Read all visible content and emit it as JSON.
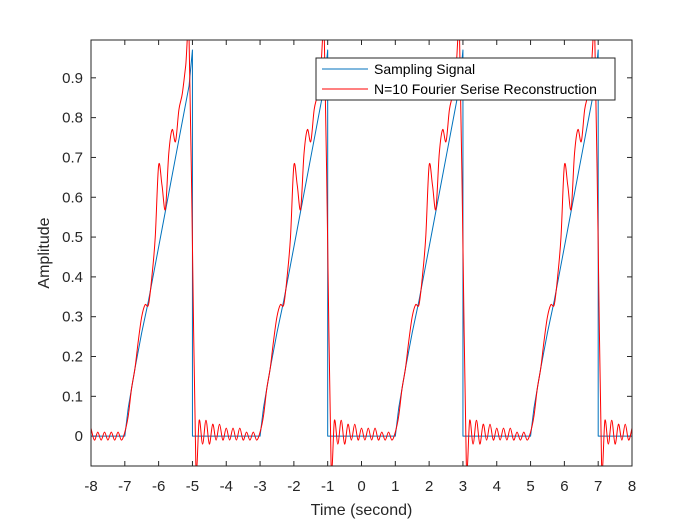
{
  "chart_data": {
    "type": "line",
    "title": "",
    "xlabel": "Time (second)",
    "ylabel": "Amplitude",
    "xlim": [
      -8,
      8
    ],
    "ylim": [
      -0.075,
      0.995
    ],
    "x_ticks": [
      -8,
      -7,
      -6,
      -5,
      -4,
      -3,
      -2,
      -1,
      0,
      1,
      2,
      3,
      4,
      5,
      6,
      7,
      8
    ],
    "y_ticks": [
      0,
      0.1,
      0.2,
      0.3,
      0.4,
      0.5,
      0.6,
      0.7,
      0.8,
      0.9
    ],
    "x_tick_labels": [
      "-8",
      "-7",
      "-6",
      "-5",
      "-4",
      "-3",
      "-2",
      "-1",
      "0",
      "1",
      "2",
      "3",
      "4",
      "5",
      "6",
      "7",
      "8"
    ],
    "y_tick_labels": [
      "0",
      "0.1",
      "0.2",
      "0.3",
      "0.4",
      "0.5",
      "0.6",
      "0.7",
      "0.8",
      "0.9"
    ],
    "grid": false,
    "legend_position": "top-right",
    "series": [
      {
        "name": "Sampling Signal",
        "color": "#0072bd",
        "x": [
          -8,
          -7,
          -6.9,
          -6.7,
          -6.5,
          -6.3,
          -6.1,
          -5.9,
          -5.7,
          -5.5,
          -5.3,
          -5.1,
          -5,
          -5,
          -3,
          -2.9,
          -2.7,
          -2.5,
          -2.3,
          -2.1,
          -1.9,
          -1.7,
          -1.5,
          -1.3,
          -1.1,
          -1,
          -1,
          1,
          1.1,
          1.3,
          1.5,
          1.7,
          1.9,
          2.1,
          2.3,
          2.5,
          2.7,
          2.9,
          3,
          3,
          5,
          5.1,
          5.3,
          5.5,
          5.7,
          5.9,
          6.1,
          6.3,
          6.5,
          6.7,
          6.9,
          7,
          7,
          8
        ],
        "y": [
          0,
          0,
          0.07,
          0.17,
          0.26,
          0.34,
          0.43,
          0.52,
          0.61,
          0.7,
          0.79,
          0.88,
          0.97,
          0,
          0,
          0.07,
          0.17,
          0.26,
          0.34,
          0.43,
          0.52,
          0.61,
          0.7,
          0.79,
          0.88,
          0.97,
          0,
          0,
          0.07,
          0.17,
          0.26,
          0.34,
          0.43,
          0.52,
          0.61,
          0.7,
          0.79,
          0.88,
          0.97,
          0,
          0,
          0.07,
          0.17,
          0.26,
          0.34,
          0.43,
          0.52,
          0.61,
          0.7,
          0.79,
          0.88,
          0.97,
          0,
          0
        ]
      },
      {
        "name": "N=10 Fourier Serise Reconstruction",
        "color": "#ff0000",
        "x": [
          -8,
          -7.9,
          -7.8,
          -7.7,
          -7.6,
          -7.5,
          -7.4,
          -7.3,
          -7.2,
          -7.1,
          -7,
          -6.9,
          -6.8,
          -6.7,
          -6.6,
          -6.5,
          -6.4,
          -6.3,
          -6.2,
          -6.1,
          -6,
          -5.9,
          -5.8,
          -5.7,
          -5.6,
          -5.5,
          -5.4,
          -5.3,
          -5.2,
          -5.1,
          -5,
          -4.9,
          -4.8,
          -4.7,
          -4.6,
          -4.5,
          -4.4,
          -4.3,
          -4.2,
          -4.1,
          -4,
          -3.9,
          -3.8,
          -3.7,
          -3.6,
          -3.5,
          -3.4,
          -3.3,
          -3.2,
          -3.1,
          -3,
          -2.9,
          -2.8,
          -2.7,
          -2.6,
          -2.5,
          -2.4,
          -2.3,
          -2.2,
          -2.1,
          -2,
          -1.9,
          -1.8,
          -1.7,
          -1.6,
          -1.5,
          -1.4,
          -1.3,
          -1.2,
          -1.1,
          -1,
          -0.9,
          -0.8,
          -0.7,
          -0.6,
          -0.5,
          -0.4,
          -0.3,
          -0.2,
          -0.1,
          0,
          0.1,
          0.2,
          0.3,
          0.4,
          0.5,
          0.6,
          0.7,
          0.8,
          0.9,
          1,
          1.1,
          1.2,
          1.3,
          1.4,
          1.5,
          1.6,
          1.7,
          1.8,
          1.9,
          2,
          2.1,
          2.2,
          2.3,
          2.4,
          2.5,
          2.6,
          2.7,
          2.8,
          2.9,
          3,
          3.1,
          3.2,
          3.3,
          3.4,
          3.5,
          3.6,
          3.7,
          3.8,
          3.9,
          4,
          4.1,
          4.2,
          4.3,
          4.4,
          4.5,
          4.6,
          4.7,
          4.8,
          4.9,
          5,
          5.1,
          5.2,
          5.3,
          5.4,
          5.5,
          5.6,
          5.7,
          5.8,
          5.9,
          6,
          6.1,
          6.2,
          6.3,
          6.4,
          6.5,
          6.6,
          6.7,
          6.8,
          6.9,
          7,
          7.1,
          7.2,
          7.3,
          7.4,
          7.5,
          7.6,
          7.7,
          7.8,
          7.9,
          8
        ],
        "y": [
          0.02,
          -0.01,
          0.01,
          -0.01,
          0.01,
          -0.01,
          0.01,
          -0.01,
          0.01,
          -0.01,
          0.01,
          0.05,
          0.12,
          0.17,
          0.24,
          0.3,
          0.33,
          0.33,
          0.4,
          0.5,
          0.68,
          0.63,
          0.57,
          0.71,
          0.77,
          0.74,
          0.82,
          0.86,
          0.93,
          1.0,
          0.48,
          -0.07,
          0.04,
          -0.02,
          0.04,
          -0.02,
          0.03,
          -0.01,
          0.03,
          -0.01,
          0.02,
          -0.01,
          0.02,
          -0.01,
          0.02,
          -0.01,
          0.01,
          -0.01,
          0.01,
          -0.01,
          0.01,
          0.05,
          0.12,
          0.17,
          0.24,
          0.3,
          0.33,
          0.33,
          0.4,
          0.5,
          0.68,
          0.63,
          0.57,
          0.71,
          0.77,
          0.74,
          0.82,
          0.86,
          0.93,
          1.0,
          0.48,
          -0.07,
          0.04,
          -0.02,
          0.04,
          -0.02,
          0.03,
          -0.01,
          0.03,
          -0.01,
          0.02,
          -0.01,
          0.02,
          -0.01,
          0.02,
          -0.01,
          0.01,
          -0.01,
          0.01,
          -0.01,
          0.01,
          0.05,
          0.12,
          0.17,
          0.24,
          0.3,
          0.33,
          0.33,
          0.4,
          0.5,
          0.68,
          0.63,
          0.57,
          0.71,
          0.77,
          0.74,
          0.82,
          0.86,
          0.93,
          1.0,
          0.48,
          -0.07,
          0.04,
          -0.02,
          0.04,
          -0.02,
          0.03,
          -0.01,
          0.03,
          -0.01,
          0.02,
          -0.01,
          0.02,
          -0.01,
          0.02,
          -0.01,
          0.01,
          -0.01,
          0.01,
          -0.01,
          0.01,
          0.05,
          0.12,
          0.17,
          0.24,
          0.3,
          0.33,
          0.33,
          0.4,
          0.5,
          0.68,
          0.63,
          0.57,
          0.71,
          0.77,
          0.74,
          0.82,
          0.86,
          0.93,
          1.0,
          0.48,
          -0.07,
          0.04,
          -0.02,
          0.04,
          -0.02,
          0.03,
          -0.01,
          0.03,
          -0.01,
          0.02
        ]
      }
    ]
  }
}
